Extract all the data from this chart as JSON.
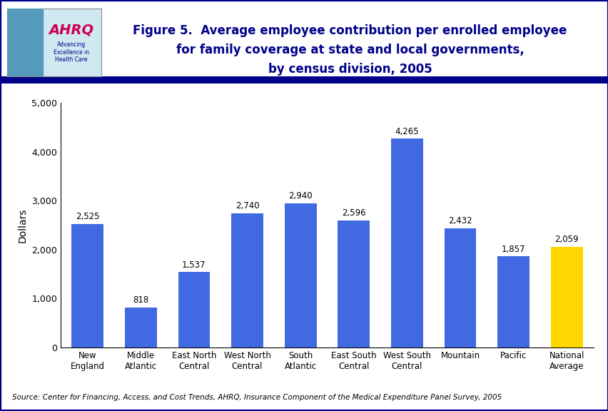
{
  "categories": [
    "New\nEngland",
    "Middle\nAtlantic",
    "East North\nCentral",
    "West North\nCentral",
    "South\nAtlantic",
    "East South\nCentral",
    "West South\nCentral",
    "Mountain",
    "Pacific",
    "National\nAverage"
  ],
  "values": [
    2525,
    818,
    1537,
    2740,
    2940,
    2596,
    4265,
    2432,
    1857,
    2059
  ],
  "bar_colors": [
    "#4169E1",
    "#4169E1",
    "#4169E1",
    "#4169E1",
    "#4169E1",
    "#4169E1",
    "#4169E1",
    "#4169E1",
    "#4169E1",
    "#FFD700"
  ],
  "title_line1": "Figure 5.  Average employee contribution per enrolled employee",
  "title_line2": "for family coverage at state and local governments,",
  "title_line3": "by census division, 2005",
  "ylabel": "Dollars",
  "ylim": [
    0,
    5000
  ],
  "yticks": [
    0,
    1000,
    2000,
    3000,
    4000,
    5000
  ],
  "ytick_labels": [
    "0",
    "1,000",
    "2,000",
    "3,000",
    "4,000",
    "5,000"
  ],
  "source_text": "Source: Center for Financing, Access, and Cost Trends, AHRQ, Insurance Component of the Medical Expenditure Panel Survey, 2005",
  "bg_color": "#ffffff",
  "title_color": "#00008B",
  "header_bar_color": "#00008B",
  "outer_border_color": "#00008B",
  "label_fontsize": 8.5,
  "value_fontsize": 8.5,
  "ylabel_fontsize": 10,
  "title_fontsize": 12,
  "source_fontsize": 7.5
}
